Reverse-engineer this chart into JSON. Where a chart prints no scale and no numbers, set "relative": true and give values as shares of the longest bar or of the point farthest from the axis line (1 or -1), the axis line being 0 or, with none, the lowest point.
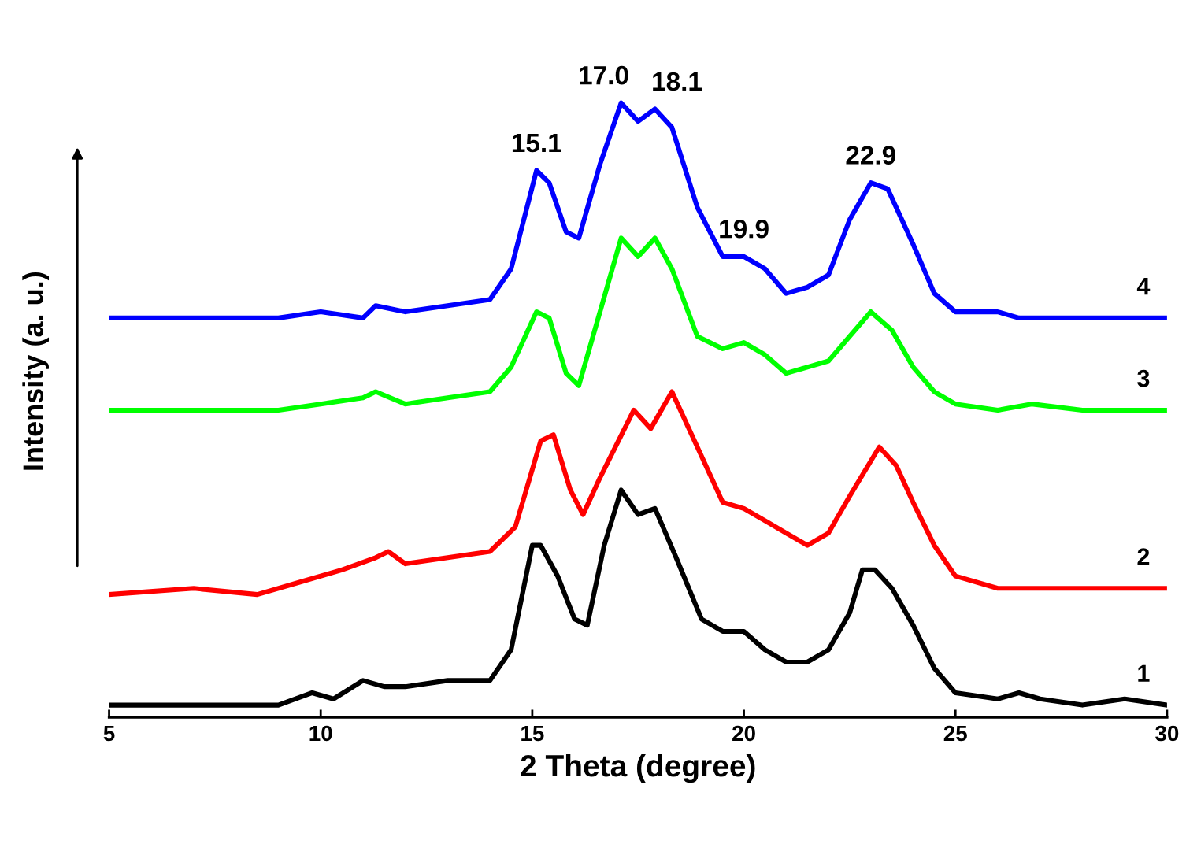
{
  "chart_data": {
    "type": "line",
    "relative": true,
    "xlabel": "2 Theta (degree)",
    "ylabel": "Intensity (a. u.)",
    "xlim": [
      5,
      30
    ],
    "xticks": [
      5,
      10,
      15,
      20,
      25,
      30
    ],
    "grid": false,
    "legend": false,
    "marker": "none",
    "line_style": "solid",
    "series": [
      {
        "name": "1",
        "color": "#000000",
        "x": [
          5,
          7,
          9,
          9.8,
          10.3,
          11,
          11.5,
          12,
          13,
          14,
          14.5,
          15.0,
          15.2,
          15.6,
          16,
          16.3,
          16.7,
          17.1,
          17.5,
          17.9,
          18.4,
          19,
          19.5,
          20,
          20.5,
          21,
          21.5,
          22,
          22.5,
          22.8,
          23.1,
          23.5,
          24,
          24.5,
          25,
          26,
          26.5,
          27,
          28,
          29,
          30
        ],
        "values": [
          0.02,
          0.02,
          0.02,
          0.04,
          0.03,
          0.06,
          0.05,
          0.05,
          0.06,
          0.06,
          0.11,
          0.28,
          0.28,
          0.23,
          0.16,
          0.15,
          0.28,
          0.37,
          0.33,
          0.34,
          0.26,
          0.16,
          0.14,
          0.14,
          0.11,
          0.09,
          0.09,
          0.11,
          0.17,
          0.24,
          0.24,
          0.21,
          0.15,
          0.08,
          0.04,
          0.03,
          0.04,
          0.03,
          0.02,
          0.03,
          0.02
        ]
      },
      {
        "name": "2",
        "color": "#ff0000",
        "x": [
          5,
          7,
          8.5,
          9.5,
          10.5,
          11.3,
          11.6,
          12,
          13,
          14,
          14.6,
          15.2,
          15.5,
          15.9,
          16.2,
          16.6,
          17.4,
          17.8,
          18.3,
          18.9,
          19.5,
          20,
          20.5,
          21,
          21.5,
          22,
          22.5,
          23.2,
          23.6,
          24,
          24.5,
          25,
          26,
          27,
          28,
          29,
          30
        ],
        "values": [
          0.2,
          0.21,
          0.2,
          0.22,
          0.24,
          0.26,
          0.27,
          0.25,
          0.26,
          0.27,
          0.31,
          0.45,
          0.46,
          0.37,
          0.33,
          0.39,
          0.5,
          0.47,
          0.53,
          0.44,
          0.35,
          0.34,
          0.32,
          0.3,
          0.28,
          0.3,
          0.36,
          0.44,
          0.41,
          0.35,
          0.28,
          0.23,
          0.21,
          0.21,
          0.21,
          0.21,
          0.21
        ]
      },
      {
        "name": "3",
        "color": "#00ff00",
        "x": [
          5,
          7,
          9,
          10,
          11,
          11.3,
          12,
          13,
          14,
          14.5,
          15.1,
          15.4,
          15.8,
          16.1,
          16.6,
          17.1,
          17.5,
          17.9,
          18.3,
          18.9,
          19.5,
          20,
          20.5,
          21,
          21.5,
          22,
          22.5,
          23,
          23.5,
          24,
          24.5,
          25,
          26,
          26.8,
          28,
          30
        ],
        "values": [
          0.5,
          0.5,
          0.5,
          0.51,
          0.52,
          0.53,
          0.51,
          0.52,
          0.53,
          0.57,
          0.66,
          0.65,
          0.56,
          0.54,
          0.66,
          0.78,
          0.75,
          0.78,
          0.73,
          0.62,
          0.6,
          0.61,
          0.59,
          0.56,
          0.57,
          0.58,
          0.62,
          0.66,
          0.63,
          0.57,
          0.53,
          0.51,
          0.5,
          0.51,
          0.5,
          0.5
        ]
      },
      {
        "name": "4",
        "color": "#0000ff",
        "x": [
          5,
          7,
          9,
          10,
          11,
          11.3,
          12,
          13,
          14,
          14.5,
          15.1,
          15.4,
          15.8,
          16.1,
          16.6,
          17.1,
          17.5,
          17.9,
          18.3,
          18.9,
          19.5,
          20,
          20.5,
          21,
          21.5,
          22,
          22.5,
          23.0,
          23.4,
          24,
          24.5,
          25,
          26,
          26.5,
          28,
          30
        ],
        "values": [
          0.65,
          0.65,
          0.65,
          0.66,
          0.65,
          0.67,
          0.66,
          0.67,
          0.68,
          0.73,
          0.89,
          0.87,
          0.79,
          0.78,
          0.9,
          1.0,
          0.97,
          0.99,
          0.96,
          0.83,
          0.75,
          0.75,
          0.73,
          0.69,
          0.7,
          0.72,
          0.81,
          0.87,
          0.86,
          0.77,
          0.69,
          0.66,
          0.66,
          0.65,
          0.65,
          0.65
        ]
      }
    ],
    "annotations": [
      {
        "text": "15.1",
        "x": 15.1,
        "y": 0.89
      },
      {
        "text": "17.0",
        "x": 17.1,
        "y": 1.0
      },
      {
        "text": "18.1",
        "x": 17.9,
        "y": 0.99
      },
      {
        "text": "19.9",
        "x": 20,
        "y": 0.75
      },
      {
        "text": "22.9",
        "x": 23.0,
        "y": 0.87
      }
    ]
  }
}
